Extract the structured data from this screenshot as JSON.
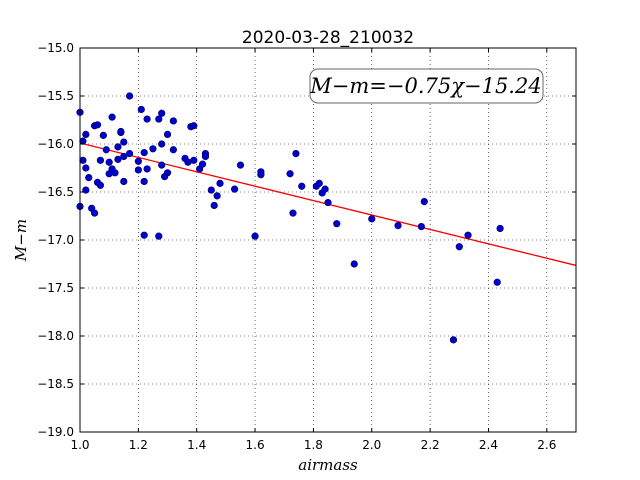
{
  "chart_data": {
    "type": "scatter",
    "title": "2020-03-28_210032",
    "xlabel": "airmass",
    "ylabel": "M−m",
    "xlim": [
      1.0,
      2.7
    ],
    "ylim": [
      -19.0,
      -15.0
    ],
    "x_ticks": [
      1.0,
      1.2,
      1.4,
      1.6,
      1.8,
      2.0,
      2.2,
      2.4,
      2.6
    ],
    "x_tick_labels": [
      "1.0",
      "1.2",
      "1.4",
      "1.6",
      "1.8",
      "2.0",
      "2.2",
      "2.4",
      "2.6"
    ],
    "y_ticks": [
      -15.0,
      -15.5,
      -16.0,
      -16.5,
      -17.0,
      -17.5,
      -18.0,
      -18.5,
      -19.0
    ],
    "y_tick_labels": [
      "−15.0",
      "−15.5",
      "−16.0",
      "−16.5",
      "−17.0",
      "−17.5",
      "−18.0",
      "−18.5",
      "−19.0"
    ],
    "grid": true,
    "annotation": "M−m=−0.75χ−15.24",
    "annotation_position": "top-right",
    "point_color": "#0000cc",
    "line_color": "#ff0000",
    "fit": {
      "slope": -0.75,
      "intercept": -15.24
    },
    "points": [
      [
        1.0,
        -15.67
      ],
      [
        1.0,
        -16.65
      ],
      [
        1.01,
        -15.97
      ],
      [
        1.01,
        -16.17
      ],
      [
        1.02,
        -16.25
      ],
      [
        1.02,
        -16.48
      ],
      [
        1.02,
        -15.9
      ],
      [
        1.03,
        -16.35
      ],
      [
        1.04,
        -16.67
      ],
      [
        1.05,
        -16.72
      ],
      [
        1.05,
        -15.81
      ],
      [
        1.06,
        -15.8
      ],
      [
        1.06,
        -16.4
      ],
      [
        1.07,
        -16.43
      ],
      [
        1.07,
        -16.17
      ],
      [
        1.08,
        -15.91
      ],
      [
        1.09,
        -16.06
      ],
      [
        1.1,
        -16.31
      ],
      [
        1.1,
        -16.19
      ],
      [
        1.11,
        -16.26
      ],
      [
        1.11,
        -15.72
      ],
      [
        1.12,
        -16.3
      ],
      [
        1.13,
        -16.03
      ],
      [
        1.13,
        -16.16
      ],
      [
        1.14,
        -15.88
      ],
      [
        1.14,
        -15.87
      ],
      [
        1.15,
        -16.39
      ],
      [
        1.15,
        -16.13
      ],
      [
        1.15,
        -15.98
      ],
      [
        1.17,
        -16.1
      ],
      [
        1.17,
        -15.5
      ],
      [
        1.2,
        -16.18
      ],
      [
        1.2,
        -16.27
      ],
      [
        1.21,
        -15.64
      ],
      [
        1.22,
        -16.95
      ],
      [
        1.22,
        -16.09
      ],
      [
        1.22,
        -16.39
      ],
      [
        1.23,
        -15.74
      ],
      [
        1.23,
        -16.26
      ],
      [
        1.25,
        -16.05
      ],
      [
        1.27,
        -15.74
      ],
      [
        1.27,
        -16.96
      ],
      [
        1.28,
        -15.68
      ],
      [
        1.28,
        -16.0
      ],
      [
        1.28,
        -16.22
      ],
      [
        1.29,
        -16.34
      ],
      [
        1.3,
        -15.9
      ],
      [
        1.3,
        -16.3
      ],
      [
        1.32,
        -15.76
      ],
      [
        1.32,
        -16.06
      ],
      [
        1.36,
        -16.15
      ],
      [
        1.37,
        -16.19
      ],
      [
        1.38,
        -15.82
      ],
      [
        1.39,
        -16.17
      ],
      [
        1.39,
        -15.81
      ],
      [
        1.41,
        -16.26
      ],
      [
        1.42,
        -16.21
      ],
      [
        1.43,
        -16.1
      ],
      [
        1.43,
        -16.13
      ],
      [
        1.45,
        -16.48
      ],
      [
        1.46,
        -16.64
      ],
      [
        1.47,
        -16.54
      ],
      [
        1.48,
        -16.41
      ],
      [
        1.53,
        -16.47
      ],
      [
        1.55,
        -16.22
      ],
      [
        1.6,
        -16.96
      ],
      [
        1.62,
        -16.32
      ],
      [
        1.62,
        -16.29
      ],
      [
        1.72,
        -16.31
      ],
      [
        1.73,
        -16.72
      ],
      [
        1.74,
        -16.1
      ],
      [
        1.76,
        -16.44
      ],
      [
        1.81,
        -16.44
      ],
      [
        1.82,
        -16.41
      ],
      [
        1.83,
        -16.51
      ],
      [
        1.84,
        -16.47
      ],
      [
        1.85,
        -16.61
      ],
      [
        1.88,
        -16.83
      ],
      [
        1.94,
        -17.25
      ],
      [
        2.0,
        -16.78
      ],
      [
        2.09,
        -16.85
      ],
      [
        2.17,
        -16.86
      ],
      [
        2.18,
        -16.6
      ],
      [
        2.28,
        -18.04
      ],
      [
        2.3,
        -17.07
      ],
      [
        2.33,
        -16.95
      ],
      [
        2.43,
        -17.44
      ],
      [
        2.44,
        -16.88
      ]
    ]
  }
}
